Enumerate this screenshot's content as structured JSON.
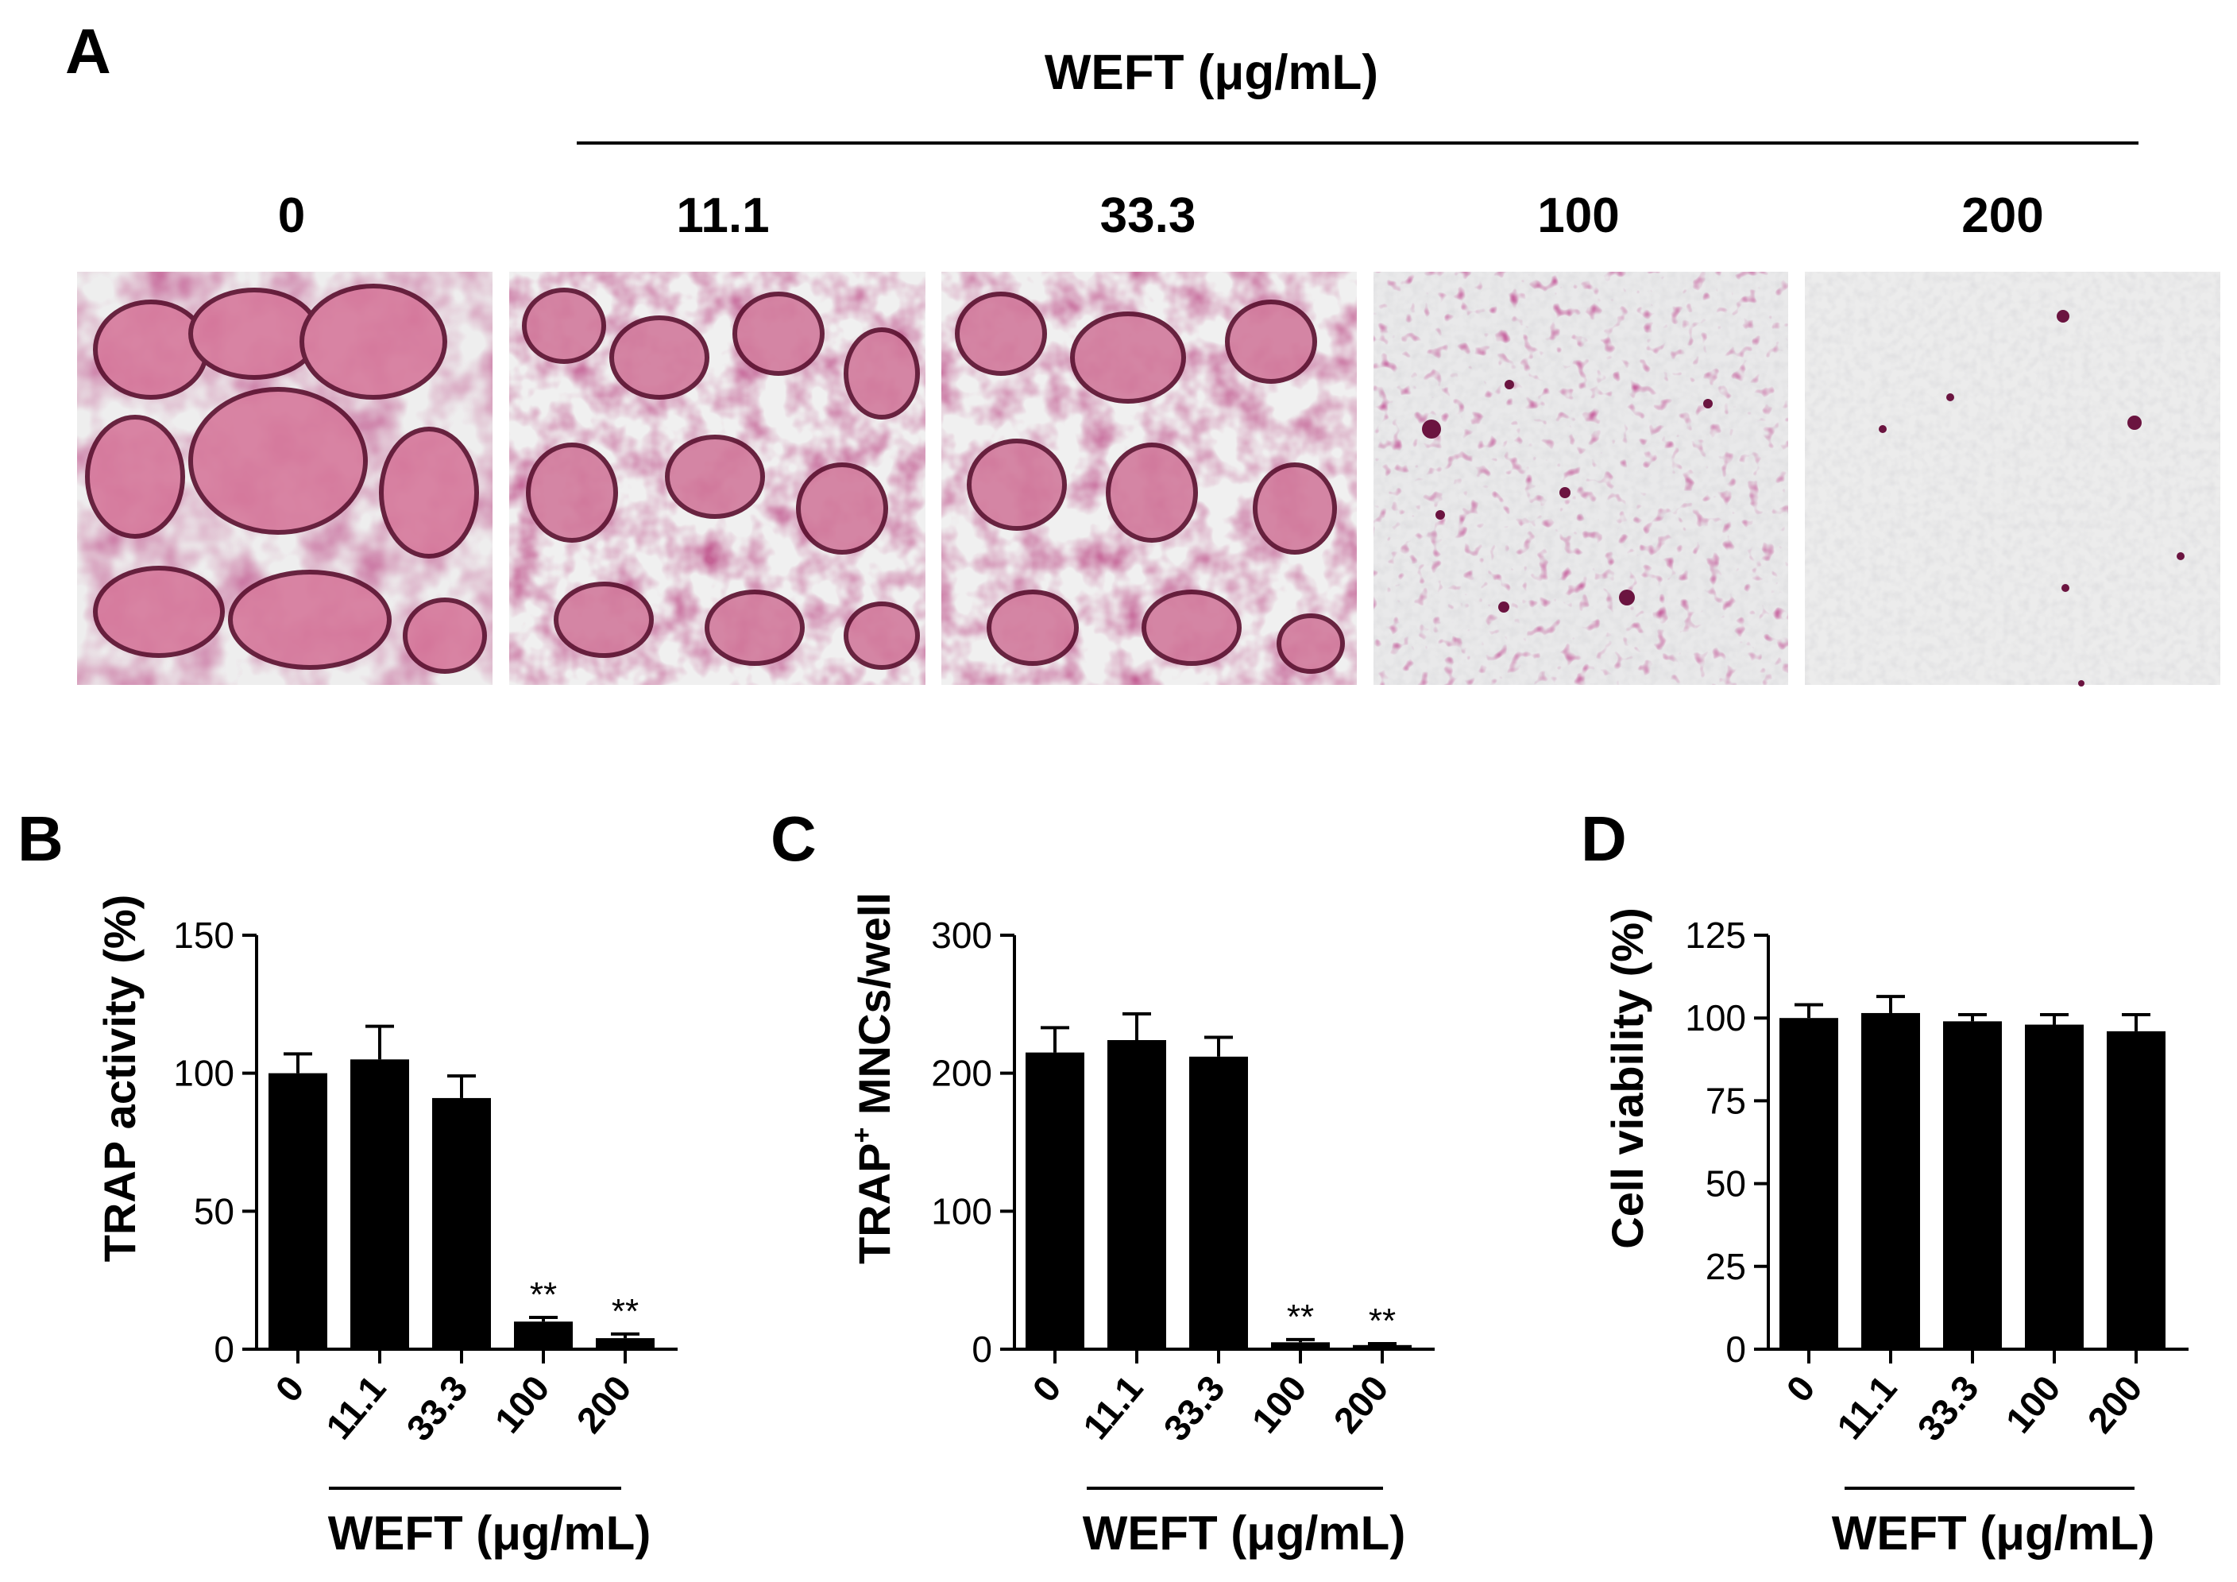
{
  "panel_a": {
    "letter": "A",
    "treatment_label": "WEFT (μg/mL)",
    "concentrations": [
      "0",
      "11.1",
      "33.3",
      "100",
      "200"
    ]
  },
  "chart_data": [
    {
      "panel": "B",
      "type": "bar",
      "categories": [
        "0",
        "11.1",
        "33.3",
        "100",
        "200"
      ],
      "values": [
        100,
        105,
        91,
        10,
        4
      ],
      "errors": [
        7,
        12,
        8,
        1.5,
        1.5
      ],
      "significance": [
        "",
        "",
        "",
        "**",
        "**"
      ],
      "ylabel": "TRAP activity (%)",
      "xlabel": "WEFT (μg/mL)",
      "ylim": [
        0,
        150
      ],
      "yticks": [
        0,
        50,
        100,
        150
      ],
      "bar_color": "#000000"
    },
    {
      "panel": "C",
      "type": "bar",
      "categories": [
        "0",
        "11.1",
        "33.3",
        "100",
        "200"
      ],
      "values": [
        215,
        224,
        212,
        5,
        3
      ],
      "errors": [
        18,
        19,
        14,
        2,
        1
      ],
      "significance": [
        "",
        "",
        "",
        "**",
        "**"
      ],
      "ylabel": "TRAP",
      "ylabel_sup": "+",
      "ylabel_rest": " MNCs/well",
      "xlabel": "WEFT (μg/mL)",
      "ylim": [
        0,
        300
      ],
      "yticks": [
        0,
        100,
        200,
        300
      ],
      "bar_color": "#000000"
    },
    {
      "panel": "D",
      "type": "bar",
      "categories": [
        "0",
        "11.1",
        "33.3",
        "100",
        "200"
      ],
      "values": [
        100,
        101.5,
        99,
        98,
        96
      ],
      "errors": [
        4,
        5,
        2,
        3,
        5
      ],
      "significance": [
        "",
        "",
        "",
        "",
        ""
      ],
      "ylabel": "Cell viability (%)",
      "xlabel": "WEFT (μg/mL)",
      "ylim": [
        0,
        125
      ],
      "yticks": [
        0,
        25,
        50,
        75,
        100,
        125
      ],
      "bar_color": "#000000"
    }
  ]
}
